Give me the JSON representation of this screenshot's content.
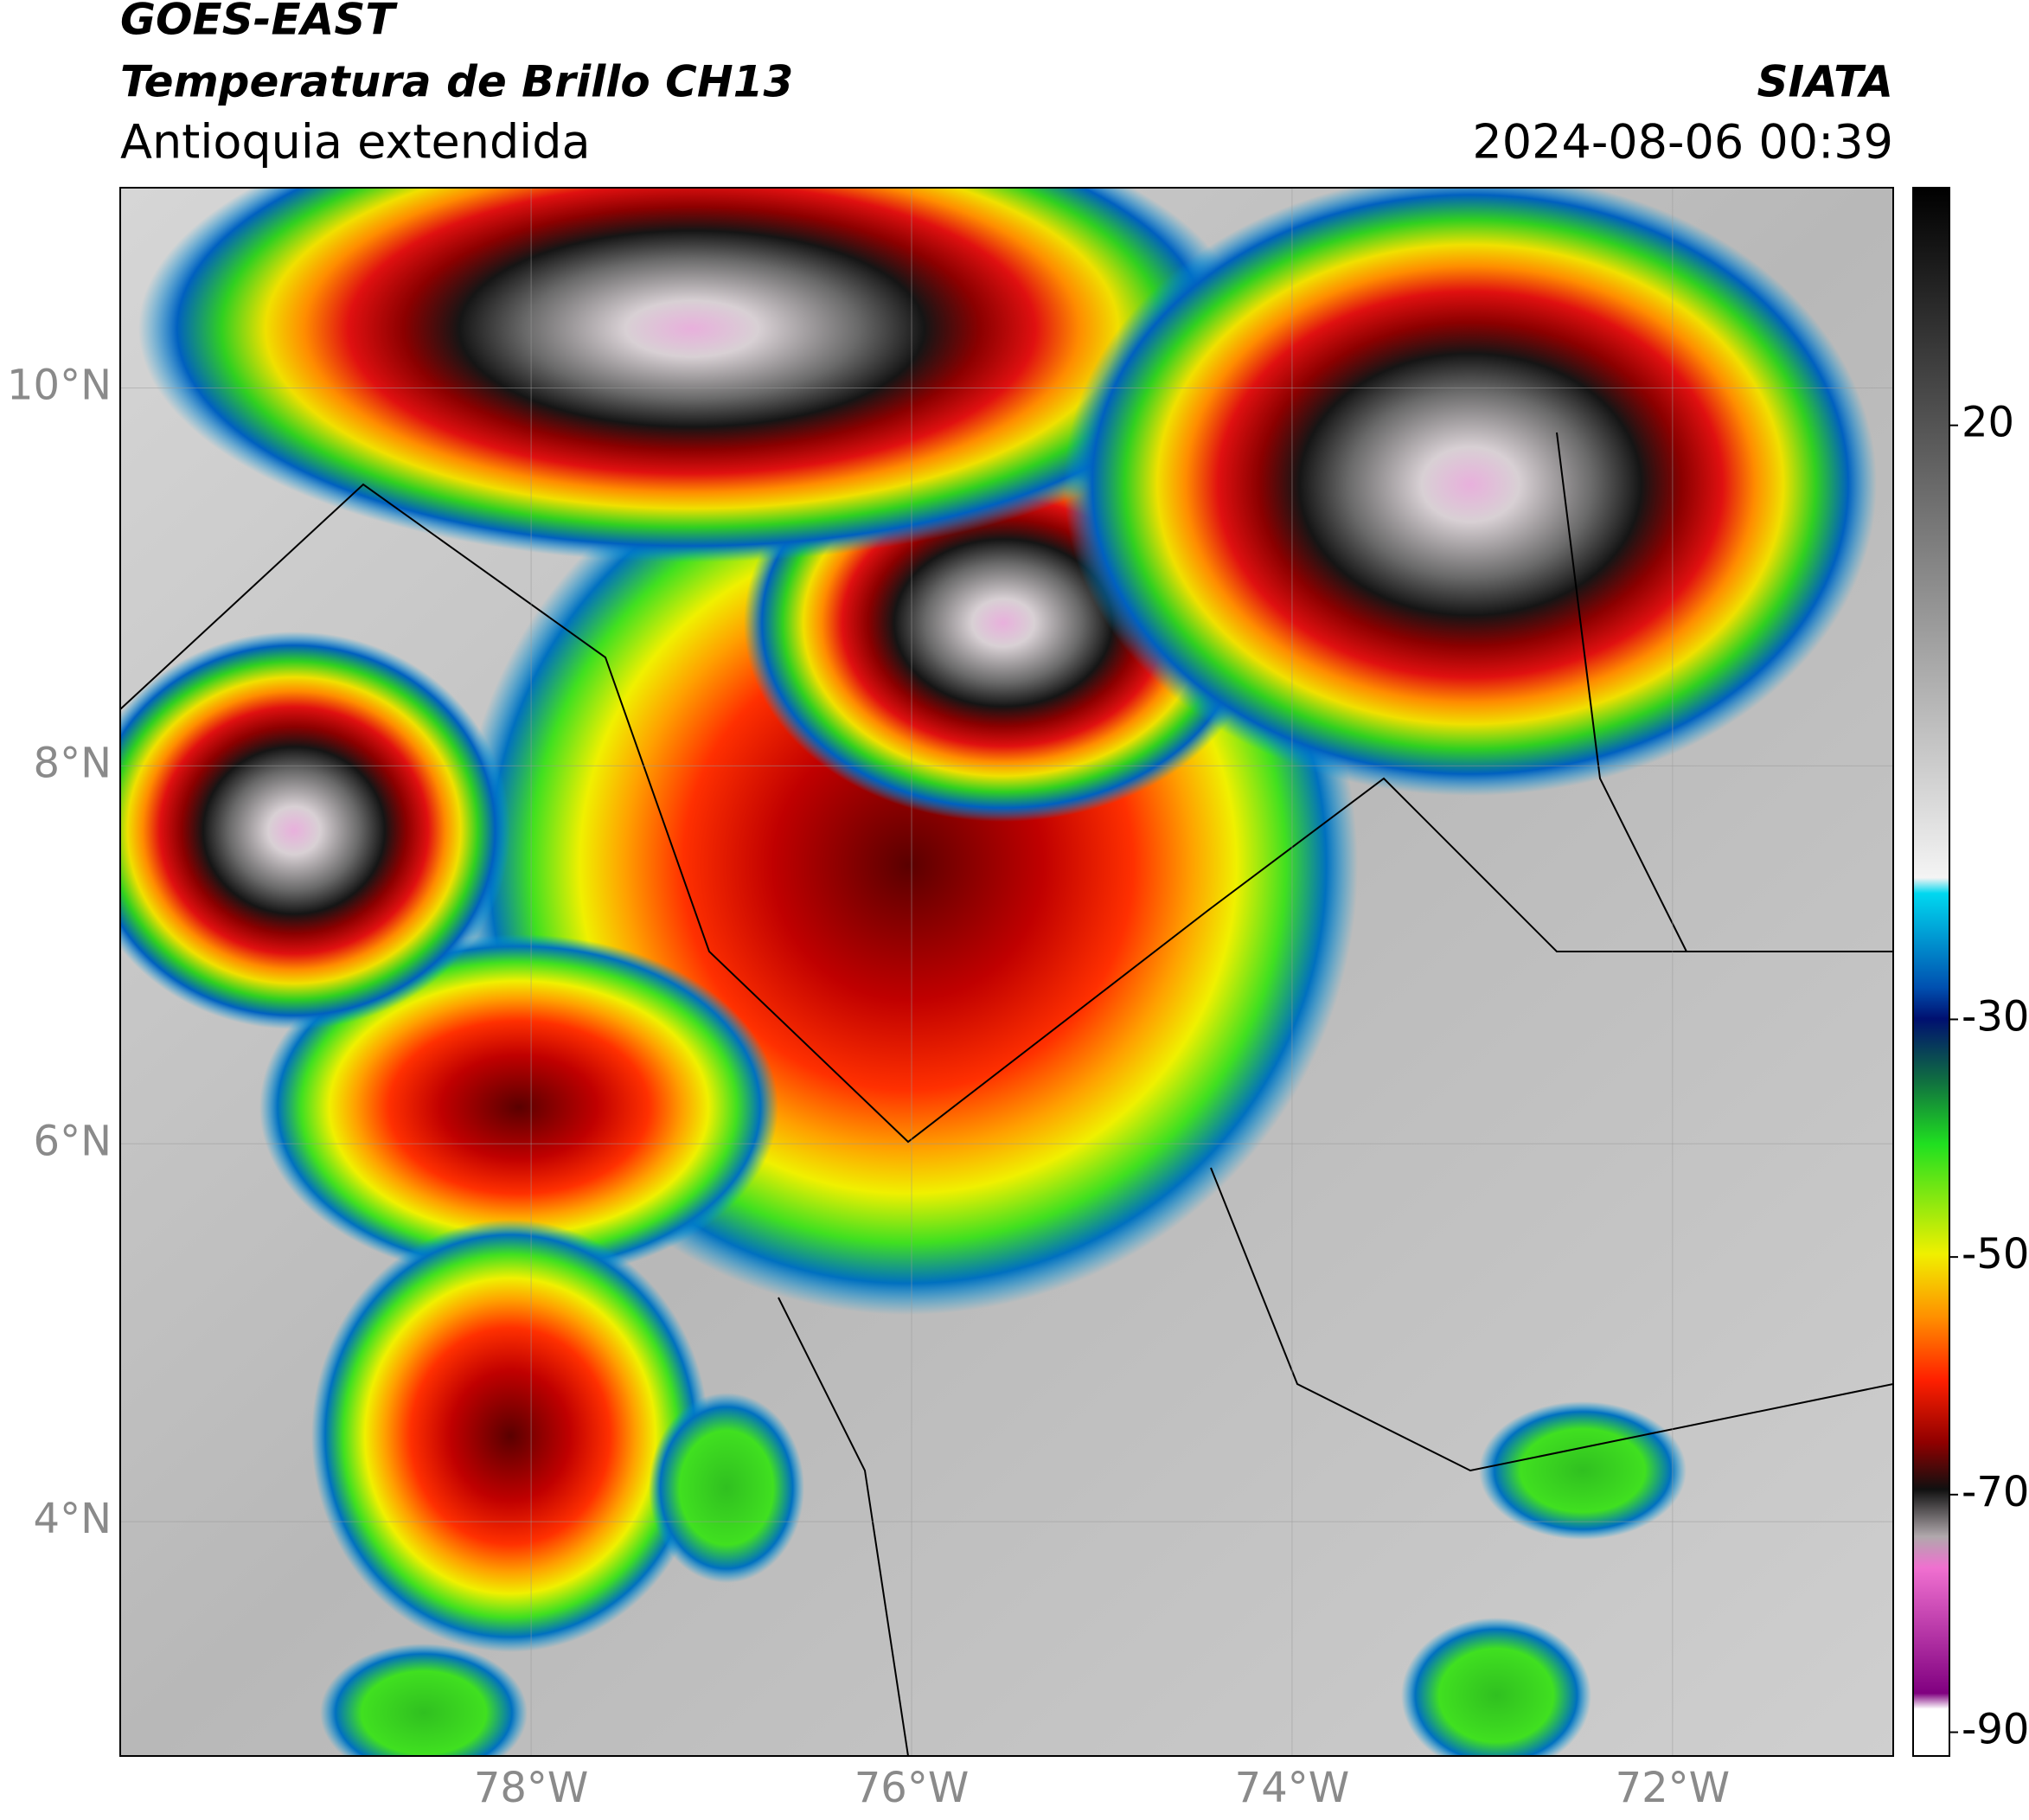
{
  "header": {
    "satellite": "GOES-EAST",
    "product": "Temperatura de Brillo CH13",
    "region": "Antioquia extendida",
    "agency": "SIATA",
    "datetime": "2024-08-06 00:39"
  },
  "map": {
    "latlim": [
      2.76,
      11.06
    ],
    "lonlim": [
      -80.16,
      -70.84
    ],
    "lat_ticks": [
      {
        "value": 10,
        "label": "10°N"
      },
      {
        "value": 8,
        "label": "8°N"
      },
      {
        "value": 6,
        "label": "6°N"
      },
      {
        "value": 4,
        "label": "4°N"
      }
    ],
    "lon_ticks": [
      {
        "value": -78,
        "label": "78°W"
      },
      {
        "value": -76,
        "label": "76°W"
      },
      {
        "value": -74,
        "label": "74°W"
      },
      {
        "value": -72,
        "label": "72°W"
      }
    ]
  },
  "colorbar": {
    "lim": [
      -92,
      40
    ],
    "ticks": [
      20,
      -30,
      -50,
      -70,
      -90
    ]
  }
}
